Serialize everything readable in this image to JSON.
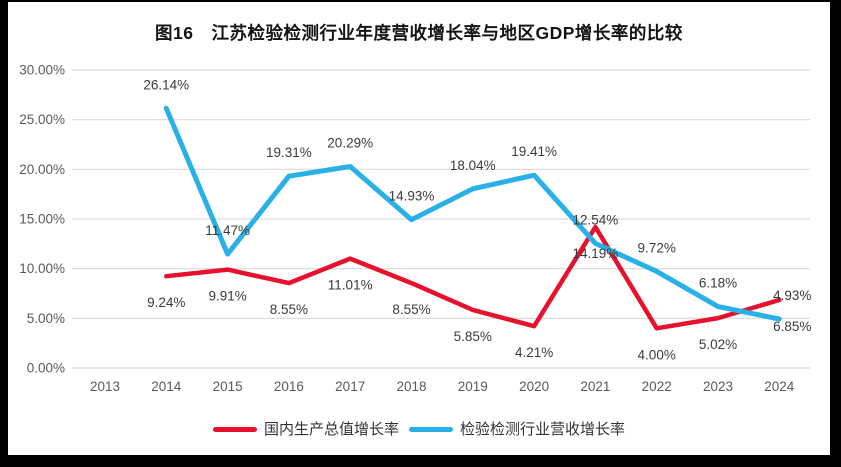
{
  "title": "图16　江苏检验检测行业年度营收增长率与地区GDP增长率的比较",
  "colors": {
    "background": "#000000",
    "panel": "#ffffff",
    "gridline": "#d9d9d9",
    "axis_text": "#595959",
    "label_text": "#3b3b3b",
    "gdp_red": "#e8112d",
    "industry_blue": "#29b0e6"
  },
  "chart_data": {
    "type": "line",
    "title": "图16　江苏检验检测行业年度营收增长率与地区GDP增长率的比较",
    "categories": [
      "2013",
      "2014",
      "2015",
      "2016",
      "2017",
      "2018",
      "2019",
      "2020",
      "2021",
      "2022",
      "2023",
      "2024"
    ],
    "series": [
      {
        "key": "gdp-growth",
        "name": "国内生产总值增长率",
        "color": "#e8112d",
        "stroke_width": 4.5,
        "label_position": "below",
        "values": [
          null,
          9.24,
          9.91,
          8.55,
          11.01,
          8.55,
          5.85,
          4.21,
          14.19,
          4.0,
          5.02,
          6.85
        ],
        "labels": [
          null,
          "9.24%",
          "9.91%",
          "8.55%",
          "11.01%",
          "8.55%",
          "5.85%",
          "4.21%",
          "14.19%",
          "4.00%",
          "5.02%",
          "6.85%"
        ]
      },
      {
        "key": "industry-revenue-growth",
        "name": "检验检测行业营收增长率",
        "color": "#29b0e6",
        "stroke_width": 5,
        "label_position": "above",
        "values": [
          null,
          26.14,
          11.47,
          19.31,
          20.29,
          14.93,
          18.04,
          19.41,
          12.54,
          9.72,
          6.18,
          4.93
        ],
        "labels": [
          null,
          "26.14%",
          "11.47%",
          "19.31%",
          "20.29%",
          "14.93%",
          "18.04%",
          "19.41%",
          "12.54%",
          "9.72%",
          "6.18%",
          "4.93%"
        ]
      }
    ],
    "xlabel": "",
    "ylabel": "",
    "ylim": [
      0,
      30
    ],
    "y_tick_step": 5,
    "y_ticks": [
      "0.00%",
      "5.00%",
      "10.00%",
      "15.00%",
      "20.00%",
      "25.00%",
      "30.00%"
    ],
    "grid": true,
    "legend_position": "bottom"
  },
  "legend": {
    "items": [
      {
        "key": "gdp-growth",
        "label": "国内生产总值增长率",
        "color": "#e8112d"
      },
      {
        "key": "industry-revenue-growth",
        "label": "检验检测行业营收增长率",
        "color": "#29b0e6"
      }
    ]
  }
}
